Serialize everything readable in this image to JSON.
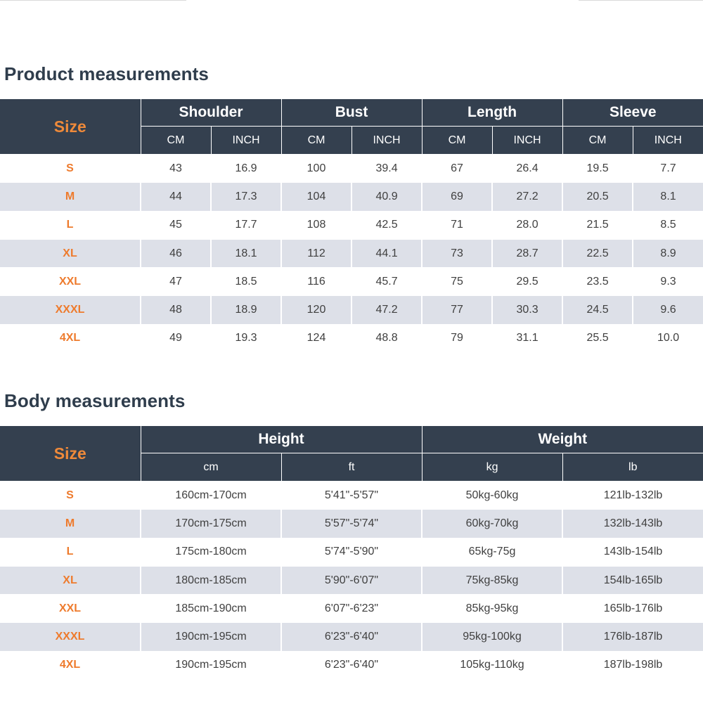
{
  "product": {
    "title": "Product measurements",
    "size_label": "Size",
    "groups": [
      "Shoulder",
      "Bust",
      "Length",
      "Sleeve"
    ],
    "units": [
      "CM",
      "INCH",
      "CM",
      "INCH",
      "CM",
      "INCH",
      "CM",
      "INCH"
    ],
    "rows": [
      [
        "S",
        "43",
        "16.9",
        "100",
        "39.4",
        "67",
        "26.4",
        "19.5",
        "7.7"
      ],
      [
        "M",
        "44",
        "17.3",
        "104",
        "40.9",
        "69",
        "27.2",
        "20.5",
        "8.1"
      ],
      [
        "L",
        "45",
        "17.7",
        "108",
        "42.5",
        "71",
        "28.0",
        "21.5",
        "8.5"
      ],
      [
        "XL",
        "46",
        "18.1",
        "112",
        "44.1",
        "73",
        "28.7",
        "22.5",
        "8.9"
      ],
      [
        "XXL",
        "47",
        "18.5",
        "116",
        "45.7",
        "75",
        "29.5",
        "23.5",
        "9.3"
      ],
      [
        "XXXL",
        "48",
        "18.9",
        "120",
        "47.2",
        "77",
        "30.3",
        "24.5",
        "9.6"
      ],
      [
        "4XL",
        "49",
        "19.3",
        "124",
        "48.8",
        "79",
        "31.1",
        "25.5",
        "10.0"
      ]
    ]
  },
  "body": {
    "title": "Body measurements",
    "size_label": "Size",
    "groups": [
      "Height",
      "Weight"
    ],
    "units": [
      "cm",
      "ft",
      "kg",
      "lb"
    ],
    "rows": [
      [
        "S",
        "160cm-170cm",
        "5'41\"-5'57\"",
        "50kg-60kg",
        "121lb-132lb"
      ],
      [
        "M",
        "170cm-175cm",
        "5'57\"-5'74\"",
        "60kg-70kg",
        "132lb-143lb"
      ],
      [
        "L",
        "175cm-180cm",
        "5'74\"-5'90\"",
        "65kg-75g",
        "143lb-154lb"
      ],
      [
        "XL",
        "180cm-185cm",
        "5'90\"-6'07\"",
        "75kg-85kg",
        "154lb-165lb"
      ],
      [
        "XXL",
        "185cm-190cm",
        "6'07\"-6'23\"",
        "85kg-95kg",
        "165lb-176lb"
      ],
      [
        "XXXL",
        "190cm-195cm",
        "6'23\"-6'40\"",
        "95kg-100kg",
        "176lb-187lb"
      ],
      [
        "4XL",
        "190cm-195cm",
        "6'23\"-6'40\"",
        "105kg-110kg",
        "187lb-198lb"
      ]
    ]
  },
  "colors": {
    "header_bg": "#34404f",
    "header_text": "#ffffff",
    "size_accent": "#ee7b2d",
    "title_text": "#2f3d4c",
    "zebra_row": "#dde0e8"
  }
}
